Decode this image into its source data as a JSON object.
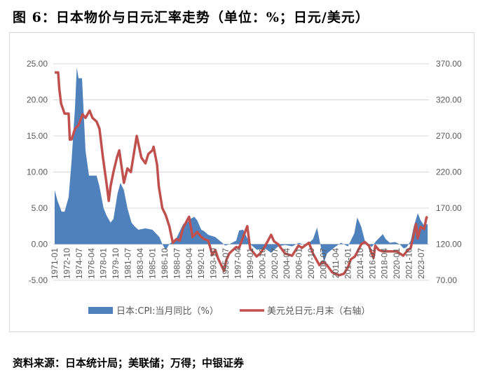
{
  "title": "图 6：日本物价与日元汇率走势（单位：%；日元/美元）",
  "source": "资料来源：日本统计局；美联储；万得；中银证券",
  "chart_data": {
    "type": "area+line",
    "title": "",
    "x_ticks": [
      "1971-01",
      "1972-10",
      "1974-07",
      "1976-04",
      "1978-01",
      "1979-10",
      "1981-07",
      "1983-04",
      "1985-01",
      "1986-10",
      "1988-07",
      "1990-04",
      "1992-01",
      "1993-10",
      "1995-07",
      "1997-04",
      "1999-01",
      "2000-10",
      "2002-07",
      "2004-04",
      "2006-01",
      "2007-10",
      "2009-07",
      "2011-04",
      "2013-01",
      "2014-10",
      "2016-07",
      "2018-04",
      "2020-01",
      "2021-10",
      "2023-07"
    ],
    "left_axis": {
      "min": -5,
      "max": 25,
      "ticks": [
        "-5.00",
        "0.00",
        "5.00",
        "10.00",
        "15.00",
        "20.00",
        "25.00"
      ]
    },
    "right_axis": {
      "min": 70,
      "max": 370,
      "ticks": [
        "70.00",
        "120.00",
        "170.00",
        "220.00",
        "270.00",
        "320.00",
        "370.00"
      ]
    },
    "grid": true,
    "legend_position": "bottom",
    "series": [
      {
        "name": "日本:CPI:当月同比（%）",
        "type": "area",
        "axis": "left",
        "color": "#4F81BD",
        "x": [
          "1971-01",
          "1971-06",
          "1972-01",
          "1972-06",
          "1973-01",
          "1973-06",
          "1973-12",
          "1974-03",
          "1974-06",
          "1974-12",
          "1975-06",
          "1975-12",
          "1976-06",
          "1977-01",
          "1977-06",
          "1978-01",
          "1978-06",
          "1979-01",
          "1979-06",
          "1980-01",
          "1980-06",
          "1980-12",
          "1981-06",
          "1982-01",
          "1982-06",
          "1983-01",
          "1984-01",
          "1985-01",
          "1986-01",
          "1986-06",
          "1986-12",
          "1987-06",
          "1988-01",
          "1988-06",
          "1989-06",
          "1990-01",
          "1990-06",
          "1991-01",
          "1991-06",
          "1992-01",
          "1992-06",
          "1993-01",
          "1994-01",
          "1995-01",
          "1995-06",
          "1996-01",
          "1997-01",
          "1997-06",
          "1998-01",
          "1999-01",
          "2000-01",
          "2001-01",
          "2002-01",
          "2003-01",
          "2004-01",
          "2005-01",
          "2006-01",
          "2007-01",
          "2008-01",
          "2008-08",
          "2009-01",
          "2009-08",
          "2010-01",
          "2011-01",
          "2012-01",
          "2013-01",
          "2013-12",
          "2014-05",
          "2014-12",
          "2015-06",
          "2016-01",
          "2016-06",
          "2017-01",
          "2018-01",
          "2018-06",
          "2019-01",
          "2019-10",
          "2020-06",
          "2021-01",
          "2021-06",
          "2022-01",
          "2022-06",
          "2022-12",
          "2023-01",
          "2023-06",
          "2023-12",
          "2024-06"
        ],
        "values": [
          7.5,
          6.0,
          4.5,
          4.5,
          6.5,
          11.5,
          19.0,
          24.5,
          23.0,
          23.0,
          13.0,
          9.5,
          9.5,
          9.5,
          8.0,
          5.0,
          4.0,
          3.0,
          3.5,
          7.0,
          8.5,
          7.5,
          5.0,
          3.0,
          2.5,
          2.0,
          2.2,
          2.0,
          1.0,
          0.0,
          -0.8,
          0.0,
          0.5,
          0.8,
          2.8,
          3.0,
          3.5,
          3.8,
          3.3,
          2.0,
          1.8,
          1.3,
          1.0,
          0.2,
          -0.2,
          0.0,
          0.5,
          1.9,
          2.0,
          0.0,
          -0.8,
          -0.5,
          -1.2,
          -0.3,
          -0.1,
          -0.3,
          0.2,
          -0.2,
          0.7,
          2.3,
          0.2,
          -2.5,
          -1.3,
          -0.5,
          0.2,
          -0.3,
          1.5,
          3.7,
          2.4,
          0.5,
          0.0,
          -0.4,
          0.4,
          1.4,
          0.7,
          0.2,
          0.3,
          0.0,
          -0.6,
          -0.4,
          0.5,
          2.4,
          4.0,
          4.3,
          3.3,
          2.6,
          2.8
        ]
      },
      {
        "name": "美元兑日元:月末（右轴）",
        "type": "line",
        "axis": "right",
        "color": "#C0504D",
        "x": [
          "1971-01",
          "1971-07",
          "1971-09",
          "1971-12",
          "1972-06",
          "1973-01",
          "1973-03",
          "1973-06",
          "1973-12",
          "1974-06",
          "1975-01",
          "1975-06",
          "1976-01",
          "1976-06",
          "1977-01",
          "1977-06",
          "1977-12",
          "1978-06",
          "1978-10",
          "1979-01",
          "1979-06",
          "1979-12",
          "1980-04",
          "1980-12",
          "1981-06",
          "1981-12",
          "1982-06",
          "1982-10",
          "1983-06",
          "1984-01",
          "1984-06",
          "1985-01",
          "1985-03",
          "1985-09",
          "1985-12",
          "1986-06",
          "1986-12",
          "1987-06",
          "1987-12",
          "1988-06",
          "1988-12",
          "1989-06",
          "1990-04",
          "1990-10",
          "1991-06",
          "1992-01",
          "1992-06",
          "1993-01",
          "1993-08",
          "1994-01",
          "1994-06",
          "1995-04",
          "1995-08",
          "1996-01",
          "1996-06",
          "1997-01",
          "1997-06",
          "1998-01",
          "1998-08",
          "1999-01",
          "1999-12",
          "2000-06",
          "2001-01",
          "2002-01",
          "2002-06",
          "2003-01",
          "2004-01",
          "2005-01",
          "2005-12",
          "2006-06",
          "2007-06",
          "2008-01",
          "2008-12",
          "2009-06",
          "2010-01",
          "2010-10",
          "2011-10",
          "2012-06",
          "2013-01",
          "2013-06",
          "2014-01",
          "2014-12",
          "2015-06",
          "2016-01",
          "2016-09",
          "2016-12",
          "2017-06",
          "2018-01",
          "2019-01",
          "2020-01",
          "2020-12",
          "2021-06",
          "2022-01",
          "2022-10",
          "2023-01",
          "2023-06",
          "2023-12",
          "2024-04",
          "2024-06"
        ],
        "values": [
          358,
          358,
          335,
          315,
          301,
          301,
          265,
          265,
          280,
          285,
          300,
          295,
          305,
          295,
          290,
          280,
          240,
          205,
          180,
          200,
          220,
          240,
          250,
          205,
          225,
          220,
          250,
          270,
          240,
          232,
          245,
          250,
          255,
          230,
          200,
          170,
          160,
          145,
          122,
          127,
          125,
          143,
          158,
          130,
          137,
          130,
          127,
          125,
          105,
          112,
          100,
          83,
          98,
          107,
          111,
          116,
          115,
          130,
          145,
          114,
          103,
          107,
          115,
          133,
          124,
          120,
          107,
          104,
          118,
          115,
          122,
          107,
          91,
          96,
          91,
          81,
          77,
          79,
          88,
          99,
          103,
          120,
          123,
          118,
          101,
          118,
          112,
          110,
          110,
          110,
          104,
          110,
          115,
          148,
          128,
          144,
          141,
          157,
          158
        ]
      }
    ]
  }
}
